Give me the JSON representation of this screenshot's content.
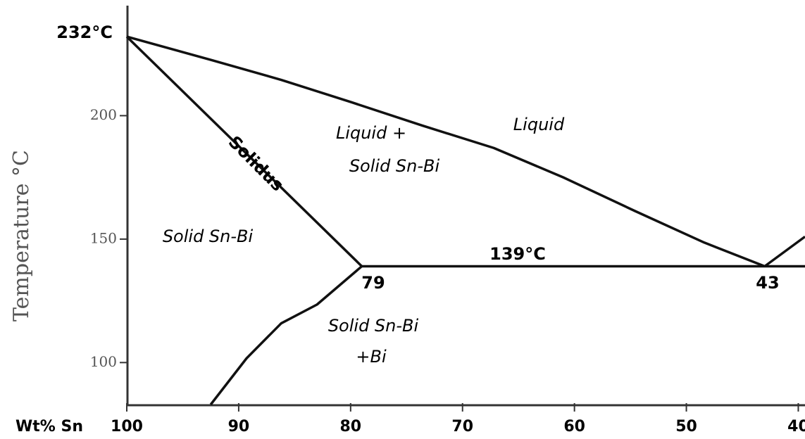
{
  "chart_data": {
    "type": "line",
    "x_label": "Wt% Sn",
    "y_label": "Temperature °C",
    "xlim": [
      100,
      39.4
    ],
    "ylim": [
      83,
      244
    ],
    "xticks": [
      100,
      90,
      80,
      70,
      60,
      50,
      40
    ],
    "yticks": [
      100,
      150,
      200
    ],
    "series": [
      {
        "color": "#111111",
        "x": [
          100,
          92.5,
          86.2,
          79.9,
          73.6,
          67.2,
          61,
          54.6,
          48.4,
          43
        ],
        "values": [
          232,
          222.6,
          214.5,
          205.4,
          196,
          186.9,
          175,
          161.4,
          148.6,
          139
        ]
      },
      {
        "name": "Solidus",
        "color": "#111111",
        "x": [
          100,
          79
        ],
        "values": [
          232,
          139
        ]
      },
      {
        "color": "#111111",
        "x": [
          79,
          39.4
        ],
        "values": [
          139,
          139
        ]
      },
      {
        "color": "#111111",
        "x": [
          79,
          83,
          86.2,
          89.3,
          92.5
        ],
        "values": [
          139,
          123.5,
          115.9,
          101.7,
          83
        ]
      },
      {
        "color": "#111111",
        "x": [
          43,
          39.4
        ],
        "values": [
          139,
          151
        ]
      }
    ],
    "annotations": [
      "232°C",
      "Liquid",
      "Liquid +",
      "Solid Sn-Bi",
      "Solid Sn-Bi",
      "Solid Sn-Bi",
      "+Bi",
      "139°C",
      "79",
      "43"
    ]
  }
}
